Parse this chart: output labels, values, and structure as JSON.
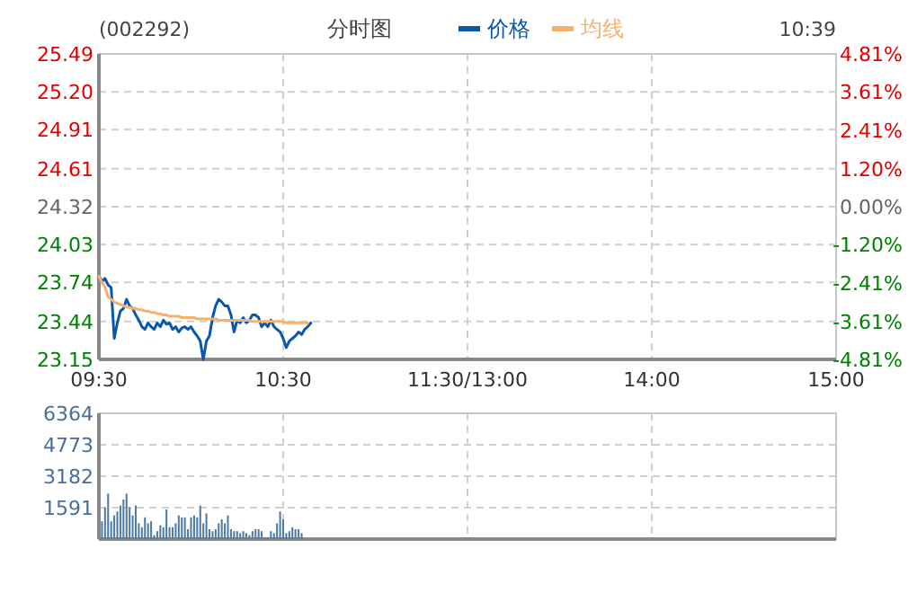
{
  "chart_data": [
    {
      "type": "line",
      "title": "(002292)",
      "subtitle": "分时图",
      "annotations": [
        "10:39"
      ],
      "legend": "top",
      "grid": true,
      "categories": [
        "09:30",
        null,
        null,
        null,
        null,
        null,
        null,
        null,
        null,
        null,
        null,
        null,
        null,
        null,
        null,
        null,
        null,
        null,
        null,
        null,
        null,
        null,
        null,
        null,
        null,
        null,
        null,
        null,
        null,
        null,
        null,
        null,
        null,
        null,
        null,
        null,
        null,
        null,
        null,
        null,
        null,
        null,
        null,
        null,
        null,
        null,
        null,
        null,
        null,
        null,
        null,
        null,
        null,
        null,
        null,
        null,
        null,
        null,
        null,
        null,
        "10:30",
        null,
        null,
        null,
        null,
        null,
        null,
        null,
        null,
        null,
        null,
        null,
        null,
        null,
        null,
        null,
        null,
        null,
        null,
        null,
        null,
        null,
        null,
        null,
        null,
        null,
        null,
        null,
        null,
        null,
        null,
        null,
        null,
        null,
        null,
        null,
        null,
        null,
        null,
        null,
        null,
        null,
        null,
        null,
        null,
        null,
        null,
        null,
        null,
        null,
        null,
        null,
        null,
        null,
        null,
        null,
        null,
        null,
        null,
        null,
        "11:30/13:00",
        null,
        null,
        null,
        null,
        null,
        null,
        null,
        null,
        null,
        null,
        null,
        null,
        null,
        null,
        null,
        null,
        null,
        null,
        null,
        null,
        null,
        null,
        null,
        null,
        null,
        null,
        null,
        null,
        null,
        null,
        null,
        null,
        null,
        null,
        null,
        null,
        null,
        null,
        null,
        null,
        null,
        null,
        null,
        null,
        null,
        null,
        null,
        null,
        null,
        null,
        null,
        null,
        null,
        null,
        null,
        null,
        null,
        null,
        null,
        "14:00",
        null,
        null,
        null,
        null,
        null,
        null,
        null,
        null,
        null,
        null,
        null,
        null,
        null,
        null,
        null,
        null,
        null,
        null,
        null,
        null,
        null,
        null,
        null,
        null,
        null,
        null,
        null,
        null,
        null,
        null,
        null,
        null,
        null,
        null,
        null,
        null,
        null,
        null,
        null,
        null,
        null,
        null,
        null,
        null,
        null,
        null,
        null,
        null,
        null,
        null,
        null,
        null,
        null,
        null,
        null,
        null,
        null,
        null,
        null,
        "15:00"
      ],
      "ylim": [
        23.15,
        25.49
      ],
      "yticks": [
        23.15,
        23.44,
        23.74,
        24.03,
        24.32,
        24.61,
        24.91,
        {
          "value": 25.2,
          "label": "25.20"
        },
        25.49
      ],
      "y2lim": [
        -4.81,
        4.81
      ],
      "y2ticks": [
        {
          "value": -4.81,
          "label": "-4.81%"
        },
        {
          "value": -3.61,
          "label": "-3.61%"
        },
        {
          "value": -2.41,
          "label": "-2.41%"
        },
        {
          "value": -1.2,
          "label": "-1.20%"
        },
        {
          "value": 0,
          "label": "0.00%"
        },
        {
          "value": 1.2,
          "label": "1.20%"
        },
        {
          "value": 2.41,
          "label": "2.41%"
        },
        {
          "value": 3.61,
          "label": "3.61%"
        },
        {
          "value": 4.81,
          "label": "4.81%"
        }
      ],
      "series": [
        {
          "name": "价格",
          "color": "#0a58ad",
          "values": [
            23.79,
            23.75,
            23.77,
            23.72,
            23.7,
            23.31,
            23.43,
            23.52,
            23.54,
            23.61,
            23.56,
            23.54,
            23.49,
            23.45,
            23.4,
            23.38,
            23.43,
            23.4,
            23.38,
            23.43,
            23.4,
            23.45,
            23.42,
            23.43,
            23.38,
            23.4,
            23.36,
            23.39,
            23.4,
            23.38,
            23.4,
            23.36,
            23.33,
            23.29,
            23.15,
            23.29,
            23.33,
            23.47,
            23.56,
            23.61,
            23.59,
            23.56,
            23.56,
            23.49,
            23.36,
            23.45,
            23.43,
            23.47,
            23.43,
            23.45,
            23.49,
            23.49,
            23.47,
            23.4,
            23.43,
            23.4,
            23.45,
            23.4,
            23.38,
            23.36,
            23.31,
            23.24,
            23.29,
            23.31,
            23.33,
            23.36,
            23.34,
            23.38,
            23.4,
            23.43,
            null,
            null,
            null,
            null,
            null,
            null,
            null,
            null,
            null,
            null,
            null,
            null,
            null,
            null,
            null,
            null,
            null,
            null,
            null,
            null,
            null,
            null,
            null,
            null,
            null,
            null,
            null,
            null,
            null,
            null,
            null,
            null,
            null,
            null,
            null,
            null,
            null,
            null,
            null,
            null,
            null,
            null,
            null,
            null,
            null,
            null,
            null,
            null,
            null,
            null,
            null,
            null,
            null,
            null,
            null,
            null,
            null,
            null,
            null,
            null,
            null,
            null,
            null,
            null,
            null,
            null,
            null,
            null,
            null,
            null,
            null,
            null,
            null,
            null,
            null,
            null,
            null,
            null,
            null,
            null,
            null,
            null,
            null,
            null,
            null,
            null,
            null,
            null,
            null,
            null,
            null,
            null,
            null,
            null,
            null,
            null,
            null,
            null,
            null,
            null,
            null,
            null,
            null,
            null,
            null,
            null,
            null,
            null,
            null,
            null,
            null,
            null,
            null,
            null,
            null,
            null,
            null,
            null,
            null,
            null,
            null,
            null,
            null,
            null,
            null,
            null,
            null,
            null,
            null,
            null,
            null,
            null,
            null,
            null,
            null,
            null,
            null,
            null,
            null,
            null,
            null,
            null,
            null,
            null,
            null,
            null,
            null,
            null,
            null,
            null,
            null,
            null,
            null,
            null,
            null,
            null,
            null,
            null,
            null,
            null,
            null,
            null,
            null,
            null,
            null,
            null,
            null,
            null,
            null,
            null,
            null
          ]
        },
        {
          "name": "均线",
          "color": "#f5b26e",
          "values": [
            23.79,
            23.74,
            23.7,
            23.63,
            23.61,
            23.59,
            23.58,
            23.57,
            23.56,
            23.55,
            23.55,
            23.54,
            23.54,
            23.53,
            23.53,
            23.52,
            23.52,
            23.51,
            23.51,
            23.5,
            23.5,
            23.49,
            23.49,
            23.48,
            23.48,
            23.48,
            23.48,
            23.47,
            23.47,
            23.47,
            23.47,
            23.47,
            23.46,
            23.46,
            23.46,
            23.46,
            23.46,
            23.46,
            23.46,
            23.45,
            23.45,
            23.45,
            23.45,
            23.45,
            23.45,
            23.45,
            23.45,
            23.45,
            23.45,
            23.45,
            23.44,
            23.44,
            23.44,
            23.44,
            23.44,
            23.44,
            23.44,
            23.44,
            23.44,
            23.44,
            23.44,
            23.43,
            23.43,
            23.43,
            23.43,
            23.43,
            23.43,
            23.43,
            23.43,
            null,
            null,
            null,
            null,
            null,
            null,
            null,
            null,
            null,
            null,
            null,
            null,
            null,
            null,
            null,
            null,
            null,
            null,
            null,
            null,
            null,
            null,
            null,
            null,
            null,
            null,
            null,
            null,
            null,
            null,
            null,
            null,
            null,
            null,
            null,
            null,
            null,
            null,
            null,
            null,
            null,
            null,
            null,
            null,
            null,
            null,
            null,
            null,
            null,
            null,
            null,
            null,
            null,
            null,
            null,
            null,
            null,
            null,
            null,
            null,
            null,
            null,
            null,
            null,
            null,
            null,
            null,
            null,
            null,
            null,
            null,
            null,
            null,
            null,
            null,
            null,
            null,
            null,
            null,
            null,
            null,
            null,
            null,
            null,
            null,
            null,
            null,
            null,
            null,
            null,
            null,
            null,
            null,
            null,
            null,
            null,
            null,
            null,
            null,
            null,
            null,
            null,
            null,
            null,
            null,
            null,
            null,
            null,
            null,
            null,
            null,
            null,
            null,
            null,
            null,
            null,
            null,
            null,
            null,
            null,
            null,
            null,
            null,
            null,
            null,
            null,
            null,
            null,
            null,
            null,
            null,
            null,
            null,
            null,
            null,
            null,
            null,
            null,
            null,
            null,
            null,
            null,
            null,
            null,
            null,
            null,
            null,
            null,
            null,
            null,
            null,
            null,
            null,
            null,
            null,
            null,
            null,
            null,
            null,
            null,
            null,
            null,
            null,
            null,
            null,
            null,
            null,
            null,
            null,
            null,
            null,
            null
          ]
        }
      ]
    },
    {
      "type": "bar",
      "grid": true,
      "tick_labels": "y",
      "ylim": [
        0,
        6364
      ],
      "yticks": [
        1591,
        3182,
        4773,
        6364
      ],
      "categories": [
        null,
        null,
        null,
        null,
        null,
        null,
        null,
        null,
        null,
        null,
        null,
        null,
        null,
        null,
        null,
        null,
        null,
        null,
        null,
        null,
        null,
        null,
        null,
        null,
        null,
        null,
        null,
        null,
        null,
        null,
        null,
        null,
        null,
        null,
        null,
        null,
        null,
        null,
        null,
        null,
        null,
        null,
        null,
        null,
        null,
        null,
        null,
        null,
        null,
        null,
        null,
        null,
        null,
        null,
        null,
        null,
        null,
        null,
        null,
        null,
        null,
        null,
        null,
        null,
        null,
        null,
        null,
        null,
        null,
        null,
        null,
        null,
        null,
        null,
        null,
        null,
        null,
        null,
        null,
        null,
        null,
        null,
        null,
        null,
        null,
        null,
        null,
        null,
        null,
        null,
        null,
        null,
        null,
        null,
        null,
        null,
        null,
        null,
        null,
        null,
        null,
        null,
        null,
        null,
        null,
        null,
        null,
        null,
        null,
        null,
        null,
        null,
        null,
        null,
        null,
        null,
        null,
        null,
        null,
        null,
        null,
        null,
        null,
        null,
        null,
        null,
        null,
        null,
        null,
        null,
        null,
        null,
        null,
        null,
        null,
        null,
        null,
        null,
        null,
        null,
        null,
        null,
        null,
        null,
        null,
        null,
        null,
        null,
        null,
        null,
        null,
        null,
        null,
        null,
        null,
        null,
        null,
        null,
        null,
        null,
        null,
        null,
        null,
        null,
        null,
        null,
        null,
        null,
        null,
        null,
        null,
        null,
        null,
        null,
        null,
        null,
        null,
        null,
        null,
        null,
        null,
        null,
        null,
        null,
        null,
        null,
        null,
        null,
        null,
        null,
        null,
        null,
        null,
        null,
        null,
        null,
        null,
        null,
        null,
        null,
        null,
        null,
        null,
        null,
        null,
        null,
        null,
        null,
        null,
        null,
        null,
        null,
        null,
        null,
        null,
        null,
        null,
        null,
        null,
        null,
        null,
        null,
        null,
        null,
        null,
        null,
        null,
        null,
        null,
        null,
        null,
        null,
        null,
        null,
        null,
        null,
        null,
        null,
        null,
        null,
        null
      ],
      "series": [
        {
          "color": "#4f7ca6",
          "values": [
            null,
            900,
            1600,
            2300,
            900,
            1200,
            1400,
            1700,
            2000,
            2300,
            1600,
            1200,
            1700,
            800,
            600,
            1100,
            800,
            900,
            200,
            400,
            700,
            600,
            1500,
            600,
            600,
            800,
            1200,
            1100,
            1100,
            500,
            1100,
            1200,
            1100,
            1700,
            800,
            1300,
            500,
            400,
            500,
            800,
            1000,
            800,
            1200,
            500,
            400,
            400,
            300,
            400,
            300,
            200,
            400,
            500,
            500,
            400,
            100,
            100,
            400,
            300,
            800,
            1400,
            1000,
            300,
            400,
            600,
            500,
            500,
            300,
            null,
            null,
            null,
            null,
            null,
            null,
            null,
            null,
            null,
            null,
            null,
            null,
            null,
            null,
            null,
            null,
            null,
            null,
            null,
            null,
            null,
            null,
            null,
            null,
            null,
            null,
            null,
            null,
            null,
            null,
            null,
            null,
            null,
            null,
            null,
            null,
            null,
            null,
            null,
            null,
            null,
            null,
            null,
            null,
            null,
            null,
            null,
            null,
            null,
            null,
            null,
            null,
            null,
            null,
            null,
            null,
            null,
            null,
            null,
            null,
            null,
            null,
            null,
            null,
            null,
            null,
            null,
            null,
            null,
            null,
            null,
            null,
            null,
            null,
            null,
            null,
            null,
            null,
            null,
            null,
            null,
            null,
            null,
            null,
            null,
            null,
            null,
            null,
            null,
            null,
            null,
            null,
            null,
            null,
            null,
            null,
            null,
            null,
            null,
            null,
            null,
            null,
            null,
            null,
            null,
            null,
            null,
            null,
            null,
            null,
            null,
            null,
            null,
            null,
            null,
            null,
            null,
            null,
            null,
            null,
            null,
            null,
            null,
            null,
            null,
            null,
            null,
            null,
            null,
            null,
            null,
            null,
            null,
            null,
            null,
            null,
            null,
            null,
            null,
            null,
            null,
            null,
            null,
            null,
            null,
            null,
            null,
            null,
            null,
            null,
            null,
            null,
            null,
            null,
            null,
            null,
            null,
            null,
            null,
            null,
            null,
            null,
            null,
            null,
            null,
            null,
            null,
            null,
            null,
            null,
            null,
            null,
            null,
            null
          ]
        }
      ]
    }
  ]
}
